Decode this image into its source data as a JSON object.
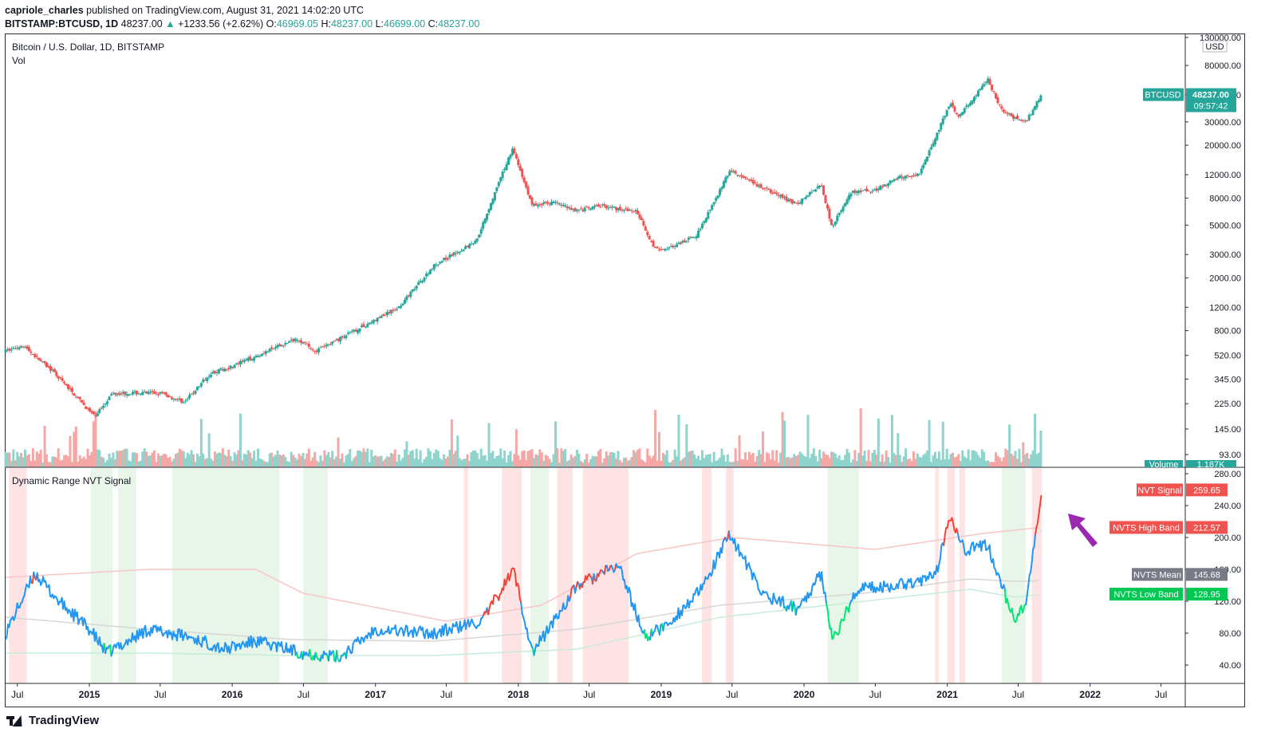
{
  "header": {
    "author": "capriole_charles",
    "published_text": "published on TradingView.com, August 31, 2021 14:02:20 UTC",
    "symbol": "BITSTAMP:BTCUSD, 1D",
    "last": "48237.00",
    "change_arrow": "▲",
    "change": "+1233.56 (+2.62%)",
    "open_label": "O:",
    "open": "46969.05",
    "high_label": "H:",
    "high": "48237.00",
    "low_label": "L:",
    "low": "46699.00",
    "close_label": "C:",
    "close": "48237.00"
  },
  "main_pane": {
    "title": "Bitcoin / U.S. Dollar, 1D, BITSTAMP",
    "sub": "Vol",
    "currency": "USD",
    "price_tag": {
      "label": "BTCUSD",
      "value": "48237.00",
      "countdown": "09:57:42"
    },
    "volume_tag": {
      "label": "Volume",
      "value": "1.187K"
    }
  },
  "lower_pane": {
    "title": "Dynamic Range NVT Signal",
    "tags": [
      {
        "label": "NVT Signal",
        "value": "259.65"
      },
      {
        "label": "NVTS High Band",
        "value": "212.57"
      },
      {
        "label": "NVTS Mean",
        "value": "145.68"
      },
      {
        "label": "NVTS Low Band",
        "value": "128.95"
      }
    ]
  },
  "footer": {
    "brand": "TradingView"
  },
  "colors": {
    "up": "#26a69a",
    "down": "#ef5350",
    "nvt_blue": "#2196f3",
    "nvt_red": "#f44336",
    "nvt_green": "#00e676",
    "high_band": "#f8c6c6",
    "mean": "#d7d7d7",
    "low_band": "#c8ecd8",
    "red_shade": "#fde3e3",
    "green_shade": "#e8f5e9",
    "price_tag": "#26a69a",
    "nvt_tag": "#ef5350",
    "mean_tag": "#787b86",
    "low_tag": "#00c853",
    "arrow": "#9c27b0"
  },
  "chart_data": [
    {
      "type": "line",
      "title": "Bitcoin / U.S. Dollar, 1D, BITSTAMP",
      "y_scale": "log",
      "ylabel": "USD",
      "y_ticks": [
        "130000.00",
        "80000.00",
        "48000.00",
        "30000.00",
        "20000.00",
        "12000.00",
        "8000.00",
        "5000.00",
        "3000.00",
        "2000.00",
        "1200.00",
        "800.00",
        "520.00",
        "345.00",
        "225.00",
        "145.00",
        "93.00"
      ],
      "x_ticks": [
        "Jul",
        "2015",
        "Jul",
        "2016",
        "Jul",
        "2017",
        "Jul",
        "2018",
        "Jul",
        "2019",
        "Jul",
        "2020",
        "Jul",
        "2021",
        "Jul",
        "2022",
        "Jul"
      ],
      "xlim": [
        "2014-06",
        "2022-09"
      ],
      "ylim": [
        90,
        135000
      ],
      "series": [
        {
          "name": "BTCUSD",
          "x": [
            "2014-06-01",
            "2014-07-15",
            "2014-10-01",
            "2015-01-14",
            "2015-03-01",
            "2015-07-01",
            "2015-09-01",
            "2015-11-05",
            "2016-01-01",
            "2016-06-15",
            "2016-08-01",
            "2016-12-31",
            "2017-03-01",
            "2017-06-01",
            "2017-09-15",
            "2017-12-17",
            "2018-02-06",
            "2018-04-01",
            "2018-06-01",
            "2018-08-01",
            "2018-11-01",
            "2018-12-15",
            "2019-02-01",
            "2019-04-01",
            "2019-06-26",
            "2019-09-01",
            "2019-12-15",
            "2020-02-13",
            "2020-03-12",
            "2020-05-01",
            "2020-07-01",
            "2020-09-01",
            "2020-10-20",
            "2021-01-08",
            "2021-02-01",
            "2021-04-14",
            "2021-05-19",
            "2021-06-22",
            "2021-07-20",
            "2021-08-31"
          ],
          "values": [
            560,
            620,
            390,
            180,
            270,
            270,
            230,
            380,
            430,
            700,
            560,
            960,
            1200,
            2500,
            3800,
            19000,
            7000,
            7500,
            6400,
            7000,
            6300,
            3300,
            3400,
            4200,
            12900,
            10000,
            7200,
            10300,
            4900,
            8800,
            9200,
            11500,
            12000,
            41000,
            33000,
            63000,
            37000,
            32000,
            30000,
            48237
          ]
        }
      ]
    },
    {
      "type": "line",
      "title": "Dynamic Range NVT Signal",
      "y_ticks": [
        "280.00",
        "240.00",
        "200.00",
        "160.00",
        "120.00",
        "80.00",
        "40.00"
      ],
      "ylim": [
        20,
        290
      ],
      "series": [
        {
          "name": "NVT Signal",
          "x": [
            "2014-06-01",
            "2014-08-15",
            "2014-10-15",
            "2015-01-01",
            "2015-02-15",
            "2015-06-01",
            "2015-09-15",
            "2015-12-15",
            "2016-03-01",
            "2016-07-01",
            "2016-10-01",
            "2017-01-01",
            "2017-06-01",
            "2017-10-01",
            "2017-12-20",
            "2018-02-06",
            "2018-06-01",
            "2018-09-15",
            "2018-11-20",
            "2019-01-15",
            "2019-04-15",
            "2019-06-26",
            "2019-09-15",
            "2019-12-15",
            "2020-02-15",
            "2020-03-15",
            "2020-05-15",
            "2020-08-15",
            "2020-12-01",
            "2021-01-08",
            "2021-02-15",
            "2021-04-15",
            "2021-05-20",
            "2021-06-22",
            "2021-07-20",
            "2021-08-15",
            "2021-08-31"
          ],
          "values": [
            80,
            155,
            120,
            85,
            55,
            85,
            75,
            60,
            70,
            55,
            50,
            85,
            80,
            95,
            160,
            55,
            140,
            165,
            75,
            90,
            135,
            205,
            130,
            110,
            155,
            70,
            135,
            140,
            150,
            230,
            185,
            190,
            140,
            95,
            115,
            200,
            259.65
          ]
        },
        {
          "name": "NVTS High Band",
          "x": [
            "2014-06-01",
            "2015-06-01",
            "2016-03-01",
            "2016-07-01",
            "2017-07-01",
            "2018-03-01",
            "2018-11-01",
            "2019-07-01",
            "2020-07-01",
            "2021-04-01",
            "2021-08-31"
          ],
          "values": [
            150,
            160,
            160,
            130,
            95,
            115,
            180,
            200,
            185,
            205,
            212.57
          ]
        },
        {
          "name": "NVTS Mean",
          "x": [
            "2014-06-01",
            "2015-06-01",
            "2016-06-01",
            "2017-06-01",
            "2018-06-01",
            "2019-06-01",
            "2020-06-01",
            "2021-03-01",
            "2021-06-22",
            "2021-08-31"
          ],
          "values": [
            100,
            85,
            72,
            70,
            85,
            115,
            130,
            148,
            145,
            145.68
          ]
        },
        {
          "name": "NVTS Low Band",
          "x": [
            "2014-06-01",
            "2015-06-01",
            "2016-06-01",
            "2017-06-01",
            "2018-06-01",
            "2019-06-01",
            "2020-06-01",
            "2021-03-01",
            "2021-06-22",
            "2021-08-31"
          ],
          "values": [
            55,
            55,
            52,
            52,
            60,
            100,
            120,
            135,
            125,
            128.95
          ]
        }
      ]
    }
  ]
}
